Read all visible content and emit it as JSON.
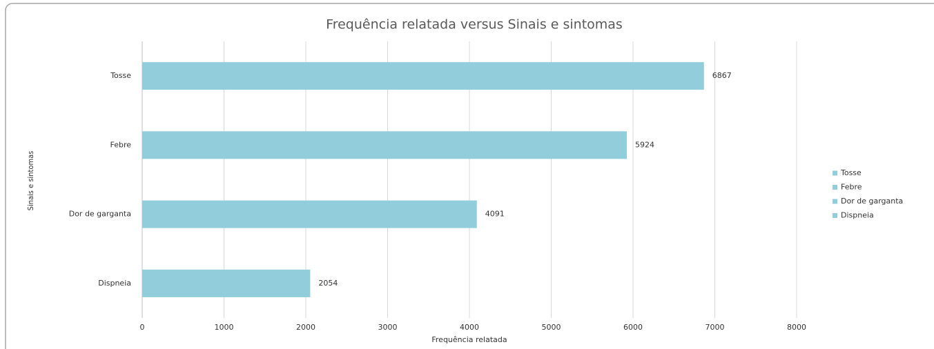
{
  "chart_data": {
    "type": "bar",
    "orientation": "horizontal",
    "title": "Frequência relatada  versus Sinais e sintomas",
    "x_label": "Frequência relatada",
    "y_label": "Sinais e sintomas",
    "categories": [
      "Tosse",
      "Febre",
      "Dor de garganta",
      "Dispneia"
    ],
    "values": [
      6867,
      5924,
      4091,
      2054
    ],
    "color": "#92cddc",
    "xlim": [
      0,
      8000
    ],
    "xticks": [
      0,
      1000,
      2000,
      3000,
      4000,
      5000,
      6000,
      7000,
      8000
    ],
    "grid": true,
    "legend": "right"
  }
}
